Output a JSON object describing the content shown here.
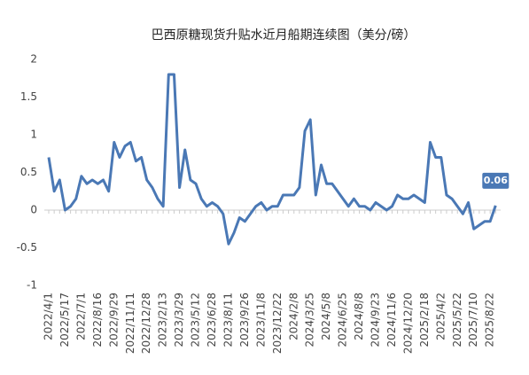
{
  "chart_data": {
    "type": "line",
    "title": "巴西原糖现货升贴水近月船期连续图（美分/磅）",
    "categories": [
      "2022/4/1",
      null,
      null,
      "2022/5/17",
      null,
      null,
      "2022/7/1",
      null,
      null,
      "2022/8/16",
      null,
      null,
      "2022/9/29",
      null,
      null,
      "2022/11/11",
      null,
      null,
      "2022/12/28",
      null,
      null,
      "2023/2/13",
      null,
      null,
      "2023/3/29",
      null,
      null,
      "2023/5/12",
      null,
      null,
      "2023/6/28",
      null,
      null,
      "2023/8/11",
      null,
      null,
      "2023/9/26",
      null,
      null,
      "2023/11/8",
      null,
      null,
      "2023/12/22",
      null,
      null,
      "2024/2/8",
      null,
      null,
      "2024/3/25",
      null,
      null,
      "2024/5/8",
      null,
      null,
      "2024/6/25",
      null,
      null,
      "2024/8/8",
      null,
      null,
      "2024/9/23",
      null,
      null,
      "2024/11/6",
      null,
      null,
      "2024/12/20",
      null,
      null,
      "2025/2/18",
      null,
      null,
      "2025/4/2",
      null,
      null,
      "2025/5/22",
      null,
      null,
      "2025/7/10",
      null,
      null,
      "2025/8/22",
      null
    ],
    "series": [
      {
        "color": "#4a78b5",
        "values": [
          0.7,
          0.25,
          0.4,
          0.0,
          0.05,
          0.15,
          0.45,
          0.35,
          0.4,
          0.35,
          0.4,
          0.25,
          0.9,
          0.7,
          0.85,
          0.9,
          0.65,
          0.7,
          0.4,
          0.3,
          0.15,
          0.05,
          1.8,
          1.8,
          0.3,
          0.8,
          0.4,
          0.35,
          0.15,
          0.05,
          0.1,
          0.05,
          -0.05,
          -0.45,
          -0.3,
          -0.1,
          -0.15,
          -0.05,
          0.05,
          0.1,
          0.0,
          0.05,
          0.05,
          0.2,
          0.2,
          0.2,
          0.3,
          1.05,
          1.2,
          0.2,
          0.6,
          0.35,
          0.35,
          0.25,
          0.15,
          0.05,
          0.15,
          0.05,
          0.05,
          0.0,
          0.1,
          0.05,
          0.0,
          0.05,
          0.2,
          0.15,
          0.15,
          0.2,
          0.15,
          0.1,
          0.9,
          0.7,
          0.7,
          0.2,
          0.15,
          0.05,
          -0.05,
          0.1,
          -0.25,
          -0.2,
          -0.15,
          -0.15,
          0.06
        ]
      }
    ],
    "ylim": [
      -1,
      2
    ],
    "yticks": [
      2,
      1.5,
      1,
      0.5,
      0,
      -0.5,
      -1
    ],
    "grid": false
  }
}
